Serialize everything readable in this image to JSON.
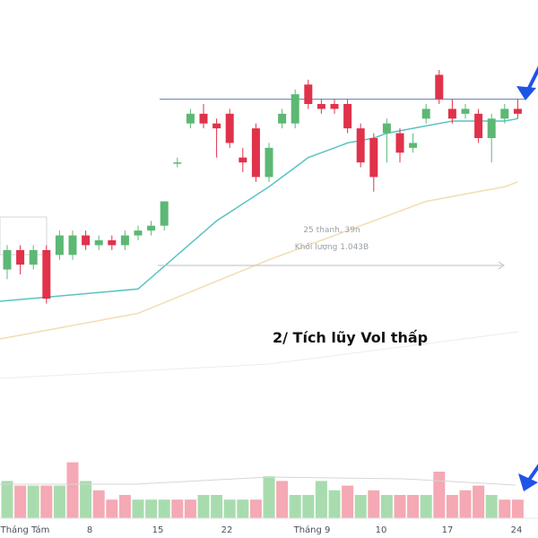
{
  "chart_data": {
    "type": "candlestick",
    "annotation_text": "2/ Tích lũy Vol thấp",
    "measure_label_1": "25 thanh, 39n",
    "measure_label_2": "Khối lượng 1.043B",
    "x_ticks": [
      "Tháng Tám",
      "8",
      "15",
      "22",
      "Tháng 9",
      "10",
      "17",
      "24"
    ],
    "colors": {
      "up": "#5cb874",
      "down": "#e0324a",
      "vol_up": "#a8dcae",
      "vol_down": "#f4a9b4",
      "ma_fast": "#59c2c4",
      "ma_slow": "#f2ddb0",
      "resistance": "#5b7db8",
      "arrow": "#1e54e6"
    },
    "candles": [
      {
        "o": 82,
        "c": 86,
        "h": 87,
        "l": 80
      },
      {
        "o": 86,
        "c": 83,
        "h": 87,
        "l": 81
      },
      {
        "o": 83,
        "c": 86,
        "h": 87,
        "l": 82
      },
      {
        "o": 86,
        "c": 76,
        "h": 87,
        "l": 75
      },
      {
        "o": 85,
        "c": 89,
        "h": 90,
        "l": 84
      },
      {
        "o": 85,
        "c": 89,
        "h": 90,
        "l": 84
      },
      {
        "o": 89,
        "c": 87,
        "h": 90,
        "l": 86
      },
      {
        "o": 87,
        "c": 88,
        "h": 89,
        "l": 86
      },
      {
        "o": 88,
        "c": 87,
        "h": 89,
        "l": 86
      },
      {
        "o": 87,
        "c": 89,
        "h": 90,
        "l": 86
      },
      {
        "o": 89,
        "c": 90,
        "h": 91,
        "l": 88
      },
      {
        "o": 90,
        "c": 91,
        "h": 92,
        "l": 89
      },
      {
        "o": 91,
        "c": 96,
        "h": 96,
        "l": 90
      },
      {
        "o": 104,
        "c": 104,
        "h": 105,
        "l": 103
      },
      {
        "o": 112,
        "c": 114,
        "h": 115,
        "l": 111
      },
      {
        "o": 114,
        "c": 112,
        "h": 116,
        "l": 111
      },
      {
        "o": 112,
        "c": 111,
        "h": 113,
        "l": 105
      },
      {
        "o": 114,
        "c": 108,
        "h": 115,
        "l": 107
      },
      {
        "o": 105,
        "c": 104,
        "h": 107,
        "l": 102
      },
      {
        "o": 111,
        "c": 101,
        "h": 112,
        "l": 100
      },
      {
        "o": 101,
        "c": 107,
        "h": 108,
        "l": 100
      },
      {
        "o": 112,
        "c": 114,
        "h": 115,
        "l": 111
      },
      {
        "o": 112,
        "c": 118,
        "h": 119,
        "l": 111
      },
      {
        "o": 120,
        "c": 116,
        "h": 121,
        "l": 115
      },
      {
        "o": 116,
        "c": 115,
        "h": 117,
        "l": 114
      },
      {
        "o": 116,
        "c": 115,
        "h": 117,
        "l": 114
      },
      {
        "o": 116,
        "c": 111,
        "h": 117,
        "l": 110
      },
      {
        "o": 111,
        "c": 104,
        "h": 112,
        "l": 103
      },
      {
        "o": 109,
        "c": 101,
        "h": 110,
        "l": 98
      },
      {
        "o": 110,
        "c": 112,
        "h": 113,
        "l": 104
      },
      {
        "o": 110,
        "c": 106,
        "h": 111,
        "l": 104
      },
      {
        "o": 107,
        "c": 108,
        "h": 110,
        "l": 106
      },
      {
        "o": 113,
        "c": 115,
        "h": 116,
        "l": 112
      },
      {
        "o": 122,
        "c": 117,
        "h": 123,
        "l": 116
      },
      {
        "o": 115,
        "c": 113,
        "h": 117,
        "l": 112
      },
      {
        "o": 114,
        "c": 115,
        "h": 116,
        "l": 113
      },
      {
        "o": 114,
        "c": 109,
        "h": 115,
        "l": 108
      },
      {
        "o": 109,
        "c": 113,
        "h": 114,
        "l": 104
      },
      {
        "o": 113,
        "c": 115,
        "h": 116,
        "l": 112
      },
      {
        "o": 115,
        "c": 114,
        "h": 117,
        "l": 113
      }
    ],
    "ma20": [
      null,
      null,
      null,
      null,
      null,
      null,
      null,
      null,
      null,
      null,
      null,
      null,
      null,
      null,
      null,
      null,
      null,
      null,
      null,
      null,
      99,
      101,
      103,
      105,
      106,
      107,
      108,
      108.5,
      109,
      110,
      110.5,
      111,
      111.5,
      112,
      112.5,
      112.5,
      112.5,
      112.5,
      112.5,
      113
    ],
    "ma50": [
      null,
      null,
      null,
      null,
      null,
      null,
      null,
      null,
      null,
      null,
      null,
      null,
      null,
      null,
      null,
      null,
      null,
      null,
      null,
      null,
      84,
      85,
      86,
      87,
      88,
      89,
      90,
      91,
      92,
      93,
      94,
      95,
      96,
      96.5,
      97,
      97.5,
      98,
      98.5,
      99,
      100
    ],
    "resistance_level": 117,
    "volume": [
      {
        "v": 8,
        "up": true
      },
      {
        "v": 7,
        "up": false
      },
      {
        "v": 7,
        "up": true
      },
      {
        "v": 7,
        "up": false
      },
      {
        "v": 7,
        "up": true
      },
      {
        "v": 12,
        "up": false
      },
      {
        "v": 8,
        "up": true
      },
      {
        "v": 6,
        "up": false
      },
      {
        "v": 4,
        "up": false
      },
      {
        "v": 5,
        "up": false
      },
      {
        "v": 4,
        "up": true
      },
      {
        "v": 4,
        "up": true
      },
      {
        "v": 4,
        "up": true
      },
      {
        "v": 4,
        "up": false
      },
      {
        "v": 4,
        "up": false
      },
      {
        "v": 5,
        "up": true
      },
      {
        "v": 5,
        "up": true
      },
      {
        "v": 4,
        "up": true
      },
      {
        "v": 4,
        "up": true
      },
      {
        "v": 4,
        "up": false
      },
      {
        "v": 9,
        "up": true
      },
      {
        "v": 8,
        "up": false
      },
      {
        "v": 5,
        "up": true
      },
      {
        "v": 5,
        "up": true
      },
      {
        "v": 8,
        "up": true
      },
      {
        "v": 6,
        "up": true
      },
      {
        "v": 7,
        "up": false
      },
      {
        "v": 5,
        "up": true
      },
      {
        "v": 6,
        "up": false
      },
      {
        "v": 5,
        "up": true
      },
      {
        "v": 5,
        "up": false
      },
      {
        "v": 5,
        "up": false
      },
      {
        "v": 5,
        "up": true
      },
      {
        "v": 10,
        "up": false
      },
      {
        "v": 5,
        "up": false
      },
      {
        "v": 6,
        "up": false
      },
      {
        "v": 7,
        "up": false
      },
      {
        "v": 5,
        "up": true
      },
      {
        "v": 4,
        "up": false
      },
      {
        "v": 4,
        "up": false
      }
    ]
  }
}
